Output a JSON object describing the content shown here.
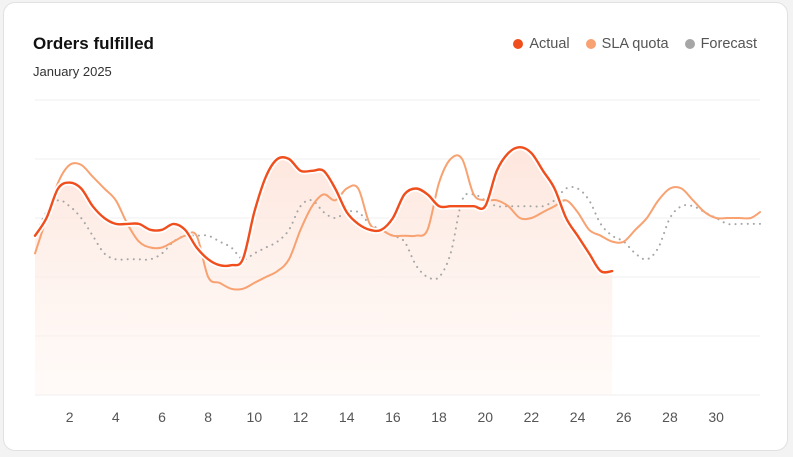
{
  "chart_data": {
    "type": "line",
    "title": "Orders fulfilled",
    "subtitle": "January 2025",
    "x_ticks": [
      "2",
      "4",
      "6",
      "8",
      "10",
      "12",
      "14",
      "16",
      "18",
      "20",
      "22",
      "24",
      "26",
      "28",
      "30"
    ],
    "x_range": [
      0.5,
      31.9
    ],
    "ylim": [
      0,
      50
    ],
    "grid": true,
    "legend_position": "top-right",
    "series": [
      {
        "name": "Actual",
        "color": "#f04e1d",
        "style": "solid",
        "filled": true,
        "x": [
          0.5,
          1,
          1.5,
          2,
          2.5,
          3,
          3.5,
          4,
          4.5,
          5,
          5.5,
          6,
          6.5,
          7,
          7.5,
          8,
          8.5,
          9,
          9.5,
          10,
          10.5,
          11,
          11.5,
          12,
          12.5,
          13,
          13.5,
          14,
          14.5,
          15,
          15.5,
          16,
          16.5,
          17,
          17.5,
          18,
          18.5,
          19,
          19.5,
          20,
          20.5,
          21,
          21.5,
          22,
          22.5,
          23,
          23.5,
          24,
          24.5,
          25,
          25.5
        ],
        "values": [
          27,
          30,
          35,
          36,
          35,
          32,
          30,
          29,
          29,
          29,
          28,
          28,
          29,
          28,
          25,
          23,
          22,
          22,
          23,
          31,
          37,
          40,
          40,
          38,
          38,
          38,
          35,
          31,
          29,
          28,
          28,
          30,
          34,
          35,
          34,
          32,
          32,
          32,
          32,
          32,
          38,
          41,
          42,
          41,
          38,
          35,
          30,
          27,
          24,
          21,
          21
        ]
      },
      {
        "name": "SLA quota",
        "color": "#f8a171",
        "style": "solid",
        "filled": false,
        "x": [
          0.5,
          1,
          1.5,
          2,
          2.5,
          3,
          3.5,
          4,
          4.5,
          5,
          5.5,
          6,
          6.5,
          7,
          7.5,
          8,
          8.5,
          9,
          9.5,
          10,
          10.5,
          11,
          11.5,
          12,
          12.5,
          13,
          13.5,
          14,
          14.5,
          15,
          15.5,
          16,
          16.5,
          17,
          17.5,
          18,
          18.5,
          19,
          19.5,
          20,
          20.5,
          21,
          21.5,
          22,
          22.5,
          23,
          23.5,
          24,
          24.5,
          25,
          25.5,
          26,
          26.5,
          27,
          27.5,
          28,
          28.5,
          29,
          29.5,
          30,
          30.5,
          31,
          31.5,
          31.9
        ],
        "values": [
          24,
          30,
          36,
          39,
          39,
          37,
          35,
          33,
          29,
          26,
          25,
          25,
          26,
          27,
          27,
          20,
          19,
          18,
          18,
          19,
          20,
          21,
          23,
          28,
          32,
          34,
          33,
          35,
          35,
          29,
          28,
          27,
          27,
          27,
          28,
          36,
          40,
          40,
          34,
          33,
          33,
          32,
          30,
          30,
          31,
          32,
          33,
          31,
          28,
          27,
          26,
          26,
          28,
          30,
          33,
          35,
          35,
          33,
          31,
          30,
          30,
          30,
          30,
          31
        ]
      },
      {
        "name": "Forecast",
        "color": "#a6a6a6",
        "style": "dotted",
        "filled": false,
        "x": [
          0.5,
          1,
          1.5,
          2,
          2.5,
          3,
          3.5,
          4,
          4.5,
          5,
          5.5,
          6,
          6.5,
          7,
          7.5,
          8,
          8.5,
          9,
          9.5,
          10,
          10.5,
          11,
          11.5,
          12,
          12.5,
          13,
          13.5,
          14,
          14.5,
          15,
          15.5,
          16,
          16.5,
          17,
          17.5,
          18,
          18.5,
          19,
          19.5,
          20,
          20.5,
          21,
          21.5,
          22,
          22.5,
          23,
          23.5,
          24,
          24.5,
          25,
          25.5,
          26,
          26.5,
          27,
          27.5,
          28,
          28.5,
          29,
          29.5,
          30,
          30.5,
          31,
          31.5,
          31.9
        ],
        "values": [
          27,
          31,
          33,
          32,
          30,
          27,
          24,
          23,
          23,
          23,
          23,
          24,
          26,
          27,
          27,
          27,
          26,
          25,
          23,
          24,
          25,
          26,
          28,
          32,
          33,
          31,
          30,
          31,
          31,
          29,
          28,
          27,
          26,
          22,
          20,
          20,
          24,
          33,
          34,
          33,
          32,
          32,
          32,
          32,
          32,
          33,
          35,
          35,
          33,
          29,
          27,
          26,
          24,
          23,
          25,
          30,
          32,
          32,
          31,
          30,
          29,
          29,
          29,
          29
        ]
      }
    ]
  }
}
